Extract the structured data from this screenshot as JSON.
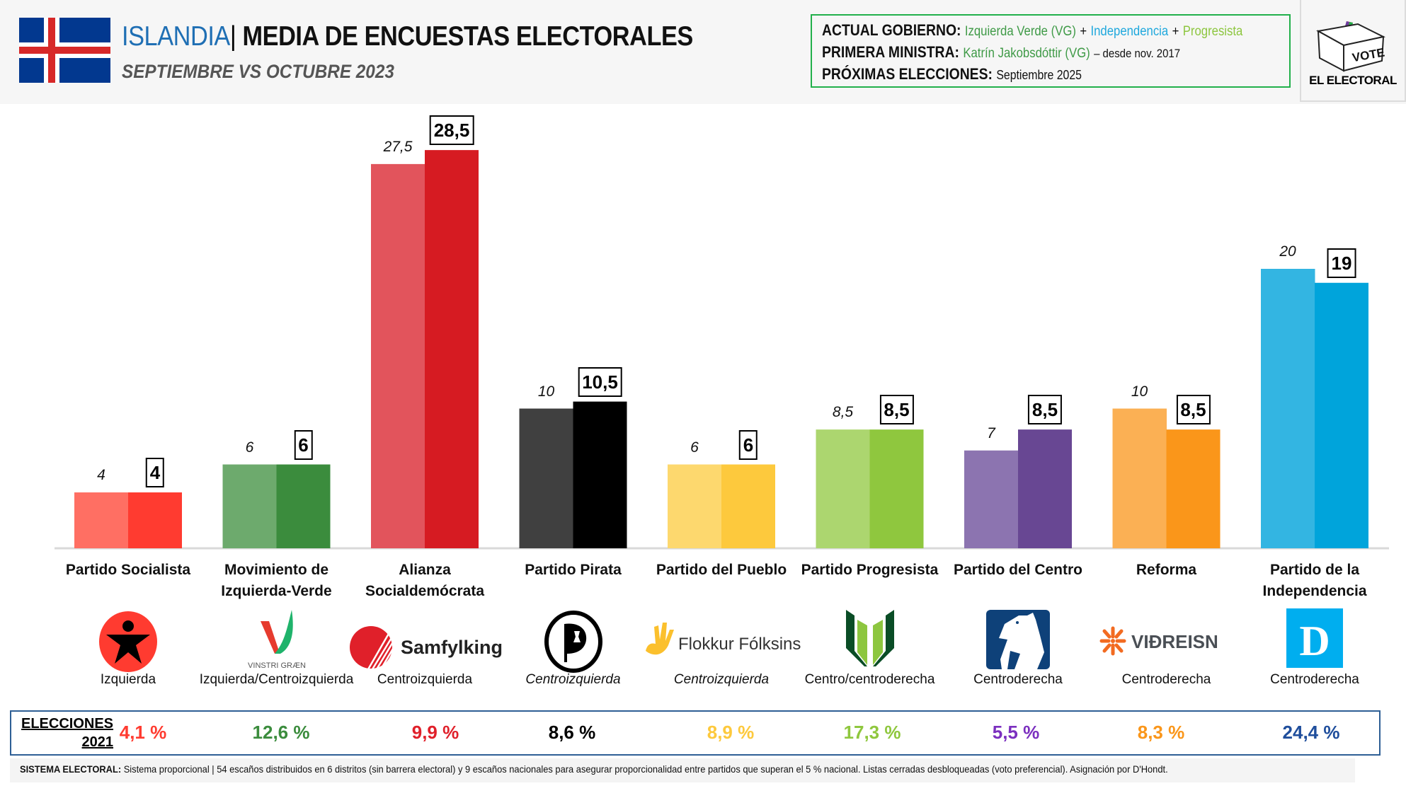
{
  "header": {
    "country": "ISLANDIA",
    "separator": "|",
    "title": " MEDIA DE ENCUESTAS ELECTORALES",
    "subtitle": "SEPTIEMBRE  VS OCTUBRE  2023",
    "flag_icon": "iceland-flag-icon",
    "info": {
      "government_label": "ACTUAL GOBIERNO:",
      "government_parties": [
        "Izquierda Verde (VG)",
        "Independencia",
        "Progresista"
      ],
      "government_plus": "+",
      "pm_label": "PRIMERA MINISTRA:",
      "pm_name": "Katrín Jakobsdóttir (VG)",
      "pm_since": "– desde nov. 2017",
      "next_label": "PRÓXIMAS ELECCIONES:",
      "next_value": "Septiembre 2025"
    },
    "brand": {
      "text": "EL ELECTORAL",
      "box_text": "VOTE",
      "icon": "ballot-box-icon"
    }
  },
  "chart_data": {
    "type": "bar",
    "title": "ISLANDIA | MEDIA DE ENCUESTAS ELECTORALES",
    "subtitle": "SEPTIEMBRE VS OCTUBRE 2023",
    "xlabel": "",
    "ylabel": "",
    "ylim": [
      0,
      30
    ],
    "grid": false,
    "legend": "none",
    "categories": [
      "Partido Socialista",
      "Movimiento de Izquierda-Verde",
      "Alianza Socialdemócrata",
      "Partido Pirata",
      "Partido del Pueblo",
      "Partido Progresista",
      "Partido del Centro",
      "Reforma",
      "Partido de la Independencia"
    ],
    "category_lines": [
      [
        "Partido Socialista"
      ],
      [
        "Movimiento de",
        "Izquierda-Verde"
      ],
      [
        "Alianza",
        "Socialdemócrata"
      ],
      [
        "Partido Pirata"
      ],
      [
        "Partido del Pueblo"
      ],
      [
        "Partido Progresista"
      ],
      [
        "Partido del Centro"
      ],
      [
        "Reforma"
      ],
      [
        "Partido de la",
        "Independencia"
      ]
    ],
    "series": [
      {
        "name": "Septiembre 2023",
        "values": [
          4,
          6,
          27.5,
          10,
          6,
          8.5,
          7,
          10,
          20
        ],
        "labels": [
          "4",
          "6",
          "27,5",
          "10",
          "6",
          "8,5",
          "7",
          "10",
          "20"
        ],
        "colors": [
          "#ff6f63",
          "#6daa6d",
          "#e2545c",
          "#404040",
          "#fdd86e",
          "#acd66f",
          "#8c74b0",
          "#fbb054",
          "#33b5e2"
        ]
      },
      {
        "name": "Octubre 2023",
        "values": [
          4,
          6,
          28.5,
          10.5,
          6,
          8.5,
          8.5,
          8.5,
          19
        ],
        "labels": [
          "4",
          "6",
          "28,5",
          "10,5",
          "6",
          "8,5",
          "8,5",
          "8,5",
          "19"
        ],
        "colors": [
          "#ff3b30",
          "#3b8c3d",
          "#d61b22",
          "#000000",
          "#fdc93d",
          "#8fc73e",
          "#684793",
          "#fa961a",
          "#00a4db"
        ]
      }
    ]
  },
  "parties": [
    {
      "logo": "socialist-star-logo-icon",
      "orientation": "Izquierda",
      "italic": false,
      "election_2021": "4,1 %",
      "color": "#ff3b30"
    },
    {
      "logo": "vinstri-graen-logo-icon",
      "logo_text": "VINSTRI GRÆN",
      "orientation": "Izquierda/Centroizquierda",
      "italic": false,
      "election_2021": "12,6 %",
      "color": "#3b8c3d"
    },
    {
      "logo": "samfylkingin-logo-icon",
      "logo_text": "Samfylkingin",
      "orientation": "Centroizquierda",
      "italic": false,
      "election_2021": "9,9 %",
      "color": "#e0202a"
    },
    {
      "logo": "pirate-party-logo-icon",
      "orientation": "Centroizquierda",
      "italic": true,
      "election_2021": "8,6 %",
      "color": "#000000"
    },
    {
      "logo": "flokkur-folksins-logo-icon",
      "logo_text": "Flokkur Fólksins",
      "orientation": "Centroizquierda",
      "italic": true,
      "election_2021": "8,9 %",
      "color": "#fdc93d"
    },
    {
      "logo": "progressive-party-logo-icon",
      "orientation": "Centro/centroderecha",
      "italic": false,
      "election_2021": "17,3 %",
      "color": "#8fc73e"
    },
    {
      "logo": "centre-party-horse-logo-icon",
      "orientation": "Centroderecha",
      "italic": false,
      "election_2021": "5,5 %",
      "color": "#7b2fbf"
    },
    {
      "logo": "vidreisn-logo-icon",
      "logo_text": "VIÐREISN",
      "orientation": "Centroderecha",
      "italic": false,
      "election_2021": "8,3 %",
      "color": "#fa961a"
    },
    {
      "logo": "independence-party-d-logo-icon",
      "logo_text": "D",
      "orientation": "Centroderecha",
      "italic": false,
      "election_2021": "24,4 %",
      "color": "#1f4e9c"
    }
  ],
  "elections": {
    "title_line1": "ELECCIONES",
    "title_line2": "2021"
  },
  "footer": {
    "label": "SISTEMA ELECTORAL:",
    "text": " Sistema proporcional | 54 escaños distribuidos en 6 distritos (sin barrera electoral) y 9 escaños nacionales para asegurar proporcionalidad entre partidos que superan el 5 % nacional. Listas cerradas desbloqueadas (voto preferencial). Asignación por D'Hondt."
  }
}
